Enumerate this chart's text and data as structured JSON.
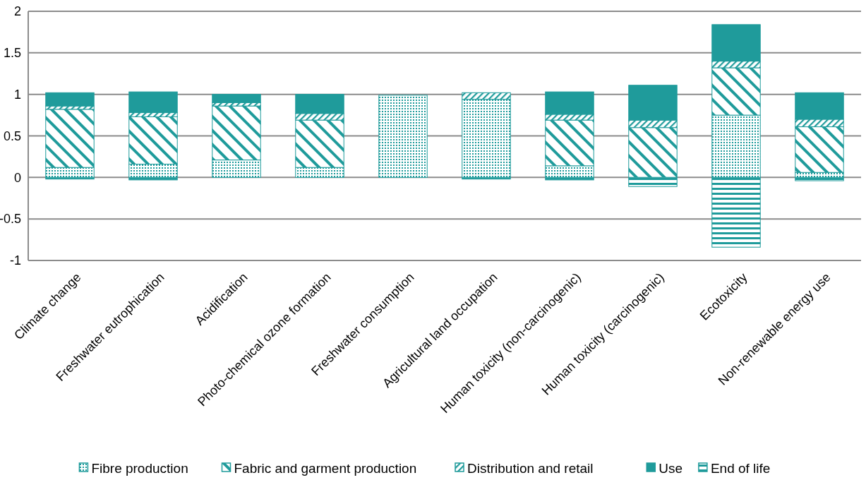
{
  "chart_data": {
    "type": "bar",
    "stacked": true,
    "categories": [
      "Climate change",
      "Freshwater eutrophication",
      "Acidification",
      "Photo-chemical ozone formation",
      "Freshwater consumption",
      "Agricultural land occupation",
      "Human toxicity (non-carcinogenic)",
      "Human toxicity (carcinogenic)",
      "Ecotoxicity",
      "Non-renewable energy use"
    ],
    "series": [
      {
        "name": "Fibre production",
        "color": "#1f9b9b",
        "values": [
          0.12,
          0.16,
          0.21,
          0.12,
          0.99,
          0.94,
          0.14,
          0,
          0.75,
          0.06
        ]
      },
      {
        "name": "Fabric and garment production",
        "color": "#1f9b9b",
        "values": [
          0.7,
          0.57,
          0.65,
          0.57,
          0,
          0,
          0.55,
          0.6,
          0.57,
          0.55
        ]
      },
      {
        "name": "Distribution and retail",
        "color": "#1f9b9b",
        "values": [
          0.04,
          0.05,
          0.04,
          0.08,
          0,
          0.08,
          0.07,
          0.09,
          0.08,
          0.09
        ]
      },
      {
        "name": "Use",
        "color": "#1f9b9b",
        "values": [
          0.16,
          0.25,
          0.1,
          0.23,
          0,
          0,
          0.27,
          0.42,
          0.44,
          0.32
        ]
      },
      {
        "name": "End of life",
        "color": "#1f9b9b",
        "values": [
          -0.02,
          -0.03,
          0,
          0,
          0,
          -0.02,
          -0.03,
          -0.11,
          -0.84,
          -0.04
        ]
      }
    ],
    "ylim": [
      -1,
      2
    ],
    "yticks": [
      -1,
      -0.5,
      0,
      0.5,
      1,
      1.5,
      2
    ],
    "grid": "y",
    "legend": "bottom"
  }
}
